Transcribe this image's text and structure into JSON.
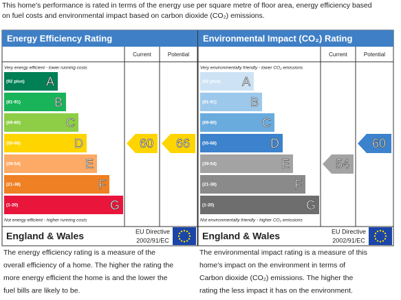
{
  "intro": [
    "This home's performance is rated in terms of the energy use per square metre of floor area, energy efficiency based",
    "on fuel costs and environmental impact based on carbon dioxide (CO₂) emissions."
  ],
  "panels": [
    {
      "title": "Energy Efficiency Rating",
      "current_header": "Current",
      "potential_header": "Potential",
      "top_note": "Very energy efficient - lower running costs",
      "bottom_note": "Not energy efficient - higher running costs",
      "bands": [
        {
          "range": "(92 plus)",
          "letter": "A",
          "color": "#008054"
        },
        {
          "range": "(81-91)",
          "letter": "B",
          "color": "#19b459"
        },
        {
          "range": "(69-80)",
          "letter": "C",
          "color": "#8dce46"
        },
        {
          "range": "(55-68)",
          "letter": "D",
          "color": "#ffd500"
        },
        {
          "range": "(39-54)",
          "letter": "E",
          "color": "#fcaa65"
        },
        {
          "range": "(21-38)",
          "letter": "F",
          "color": "#ef8023"
        },
        {
          "range": "(1-20)",
          "letter": "G",
          "color": "#e9153b"
        }
      ],
      "current": 60,
      "potential": 66,
      "region": "England & Wales",
      "directive": "EU Directive",
      "directive_code": "2002/91/EC",
      "description": [
        "The energy efficiency rating is a measure of the",
        "overall efficiency of a home. The higher the rating the",
        "more energy efficient the home is and the lower the",
        "fuel bills are likely to be."
      ]
    },
    {
      "title": "Environmental Impact (CO₂) Rating",
      "current_header": "Current",
      "potential_header": "Potential",
      "top_note": "Very environmentally friendly - lower CO₂ emissions",
      "bottom_note": "Not environmentally friendly - higher CO₂ emissions",
      "bands": [
        {
          "range": "(92 plus)",
          "letter": "A",
          "color": "#cde3f5"
        },
        {
          "range": "(81-91)",
          "letter": "B",
          "color": "#9cc8ec"
        },
        {
          "range": "(69-80)",
          "letter": "C",
          "color": "#6aabde"
        },
        {
          "range": "(55-68)",
          "letter": "D",
          "color": "#3c82cc"
        },
        {
          "range": "(39-54)",
          "letter": "E",
          "color": "#a3a3a3"
        },
        {
          "range": "(21-38)",
          "letter": "F",
          "color": "#8a8a8a"
        },
        {
          "range": "(1-20)",
          "letter": "G",
          "color": "#6e6e6e"
        }
      ],
      "current": 54,
      "potential": 60,
      "region": "England & Wales",
      "directive": "EU Directive",
      "directive_code": "2002/91/EC",
      "description": [
        "The environmental impact rating is a measure of this",
        "home's impact on the environment in terms of",
        "Carbon dioxide (CO₂) emissions. The higher the",
        "rating the less impact it has on the environment."
      ]
    }
  ]
}
